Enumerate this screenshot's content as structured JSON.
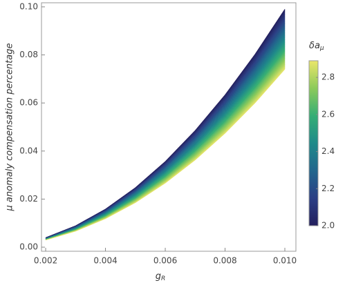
{
  "chart_data": {
    "type": "area",
    "x_label": "g",
    "x_label_sub": "R",
    "y_label": "μ anomaly compensation percentage",
    "colorbar_label": "δa",
    "colorbar_label_sub": "μ",
    "x": [
      0.002,
      0.003,
      0.004,
      0.005,
      0.006,
      0.007,
      0.008,
      0.009,
      0.01
    ],
    "xlim": [
      0.00186,
      0.01037
    ],
    "xticks": [
      0.002,
      0.004,
      0.006,
      0.008,
      {
        "value": 0.01,
        "label": "0.010"
      }
    ],
    "ylim": [
      -0.0017,
      0.1017
    ],
    "yticks": [
      {
        "value": 0,
        "label": "0.00"
      },
      0.02,
      0.04,
      0.06,
      0.08,
      {
        "value": 0.1,
        "label": "0.10"
      }
    ],
    "clim": [
      2.0,
      2.89
    ],
    "cticks": [
      {
        "value": 2,
        "label": "2.0"
      },
      2.2,
      2.4,
      2.6,
      2.8
    ],
    "colormap": [
      "#231f5e",
      "#2b3f85",
      "#22668d",
      "#1f8a8a",
      "#35ae75",
      "#8cca5a",
      "#eae66a"
    ],
    "series": [
      {
        "level": 2.0,
        "values": [
          0.00396,
          0.00891,
          0.01584,
          0.02475,
          0.03564,
          0.04851,
          0.06336,
          0.08019,
          0.099
        ]
      },
      {
        "level": 2.2,
        "values": [
          0.00373,
          0.0084,
          0.01493,
          0.02333,
          0.03359,
          0.04572,
          0.05971,
          0.07557,
          0.0933
        ]
      },
      {
        "level": 2.4,
        "values": [
          0.00351,
          0.00789,
          0.01403,
          0.02193,
          0.03157,
          0.04297,
          0.05613,
          0.07104,
          0.0877
        ]
      },
      {
        "level": 2.6,
        "values": [
          0.00328,
          0.00738,
          0.01312,
          0.0205,
          0.02952,
          0.04018,
          0.05248,
          0.06642,
          0.082
        ]
      },
      {
        "level": 2.8,
        "values": [
          0.00305,
          0.00687,
          0.01221,
          0.01908,
          0.02747,
          0.03739,
          0.04883,
          0.0618,
          0.0763
        ]
      },
      {
        "level": 2.88,
        "values": [
          0.00296,
          0.00667,
          0.01186,
          0.01853,
          0.02668,
          0.03631,
          0.04742,
          0.06002,
          0.0741
        ]
      }
    ]
  }
}
